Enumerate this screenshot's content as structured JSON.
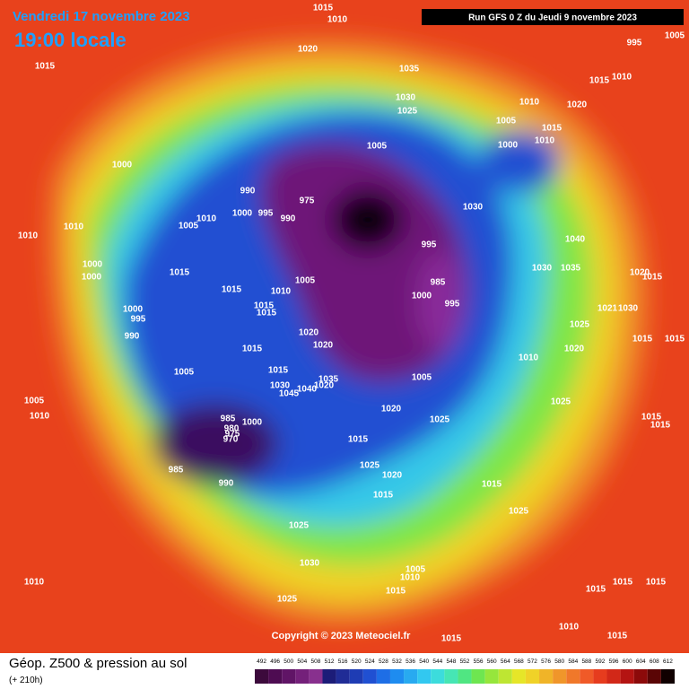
{
  "header": {
    "date": "Vendredi 17 novembre 2023",
    "time": "19:00 locale",
    "run": "Run GFS 0 Z du Jeudi 9 novembre 2023"
  },
  "copyright": "Copyright © 2023 Meteociel.fr",
  "footer": {
    "title": "Géop. Z500 & pression au sol",
    "lead": "(+ 210h)"
  },
  "scale": {
    "ticks": [
      492,
      496,
      500,
      504,
      508,
      512,
      516,
      520,
      524,
      528,
      532,
      536,
      540,
      544,
      548,
      552,
      556,
      560,
      564,
      568,
      572,
      576,
      580,
      584,
      588,
      592,
      596,
      600,
      604,
      608,
      612
    ],
    "colors": [
      "#3c0a3c",
      "#4e0c52",
      "#601466",
      "#74207a",
      "#88308e",
      "#1c1c78",
      "#202c96",
      "#1e3cb4",
      "#2050d2",
      "#1e6ee6",
      "#1e8cf0",
      "#28aaf0",
      "#32c8f0",
      "#3cdcdc",
      "#46e6b4",
      "#50e682",
      "#6ee650",
      "#96e63c",
      "#bee632",
      "#e6e628",
      "#f0d228",
      "#f0b428",
      "#f0962a",
      "#f0782a",
      "#f05a28",
      "#e63c1e",
      "#d22818",
      "#b41412",
      "#8c0a0a",
      "#5a0505",
      "#100000"
    ]
  },
  "isobar_labels": [
    1015,
    1010,
    995,
    1005,
    1015,
    1020,
    1035,
    1015,
    1010,
    1030,
    1025,
    1010,
    1020,
    1005,
    1015,
    1005,
    1000,
    1010,
    1000,
    990,
    975,
    1000,
    995,
    990,
    1030,
    1010,
    1005,
    1010,
    1010,
    995,
    1040,
    1000,
    1000,
    1015,
    1030,
    1035,
    1020,
    1015,
    985,
    1015,
    1010,
    1005,
    1000,
    995,
    1015,
    1015,
    1021,
    1030,
    1000,
    995,
    1025,
    990,
    1020,
    1020,
    1015,
    1020,
    1015,
    1015,
    1010,
    1005,
    1015,
    1035,
    1005,
    1030,
    1040,
    1020,
    1045,
    1025,
    1010,
    1005,
    1020,
    1025,
    1015,
    1015,
    985,
    1000,
    980,
    975,
    970,
    1015,
    985,
    990,
    1025,
    1020,
    1015,
    1015,
    1025,
    1025,
    1030,
    1010,
    1005,
    1010,
    1015,
    1025,
    1015,
    1015,
    1015,
    1010,
    1015,
    1015
  ]
}
